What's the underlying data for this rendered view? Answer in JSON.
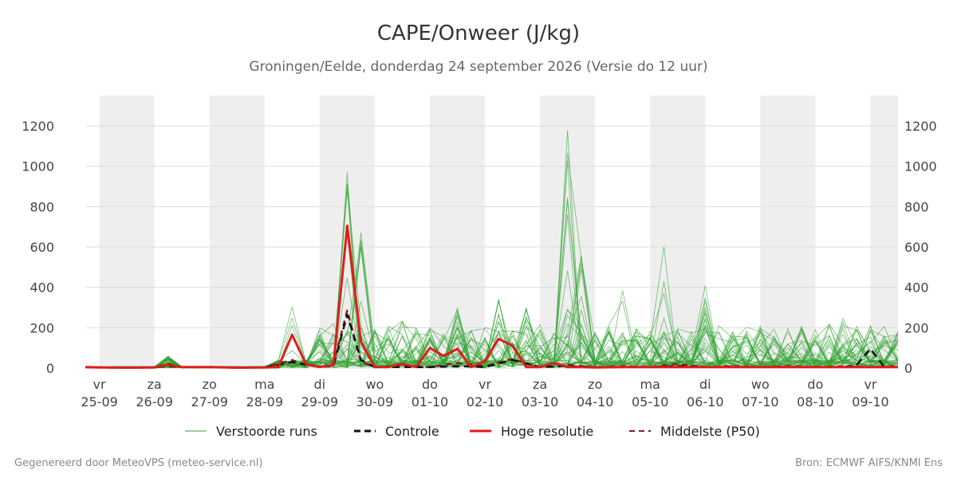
{
  "title": "CAPE/Onweer (J/kg)",
  "subtitle": "Groningen/Eelde, donderdag 24 september 2026 (Versie do 12 uur)",
  "footer": {
    "left": "Gegenereerd door MeteoVPS (meteo-service.nl)",
    "right": "Bron: ECMWF AIFS/KNMI Ens"
  },
  "colors": {
    "ensemble": "#2ca02c",
    "control": "#111111",
    "hires": "#e11b1b",
    "median": "#8b1a1a",
    "weekend_band": "#eeeeee",
    "grid": "#dddddd"
  },
  "chart_data": {
    "type": "line",
    "title": "CAPE/Onweer (J/kg)",
    "xlabel": "",
    "ylabel": "",
    "x_unit": "days from vr 25-09 00:00",
    "xlim": [
      -0.24,
      14.5
    ],
    "ylim": [
      0,
      1350
    ],
    "y_ticks": [
      0,
      200,
      400,
      600,
      800,
      1000,
      1200
    ],
    "grid": true,
    "legend_position": "bottom",
    "day_ticks": [
      {
        "x": 0,
        "day": "vr",
        "date": "25-09"
      },
      {
        "x": 1,
        "day": "za",
        "date": "26-09"
      },
      {
        "x": 2,
        "day": "zo",
        "date": "27-09"
      },
      {
        "x": 3,
        "day": "ma",
        "date": "28-09"
      },
      {
        "x": 4,
        "day": "di",
        "date": "29-09"
      },
      {
        "x": 5,
        "day": "wo",
        "date": "30-09"
      },
      {
        "x": 6,
        "day": "do",
        "date": "01-10"
      },
      {
        "x": 7,
        "day": "vr",
        "date": "02-10"
      },
      {
        "x": 8,
        "day": "za",
        "date": "03-10"
      },
      {
        "x": 9,
        "day": "zo",
        "date": "04-10"
      },
      {
        "x": 10,
        "day": "ma",
        "date": "05-10"
      },
      {
        "x": 11,
        "day": "di",
        "date": "06-10"
      },
      {
        "x": 12,
        "day": "wo",
        "date": "07-10"
      },
      {
        "x": 13,
        "day": "do",
        "date": "08-10"
      },
      {
        "x": 14,
        "day": "vr",
        "date": "09-10"
      }
    ],
    "shaded_bands": [
      [
        0,
        1
      ],
      [
        2,
        3
      ],
      [
        4,
        5
      ],
      [
        6,
        7
      ],
      [
        8,
        9
      ],
      [
        10,
        11
      ],
      [
        12,
        13
      ],
      [
        14,
        14.5
      ]
    ],
    "legend": [
      {
        "key": "ensemble",
        "label": "Verstoorde runs"
      },
      {
        "key": "control",
        "label": "Controle"
      },
      {
        "key": "hires",
        "label": "Hoge resolutie"
      },
      {
        "key": "median",
        "label": "Middelste (P50)"
      }
    ],
    "series": [
      {
        "name": "Hoge resolutie",
        "key": "hires",
        "x": [
          -0.25,
          0,
          0.5,
          1,
          1.25,
          1.5,
          2,
          2.5,
          3,
          3.25,
          3.5,
          3.75,
          4,
          4.25,
          4.5,
          4.75,
          5,
          5.25,
          5.5,
          5.75,
          6,
          6.25,
          6.5,
          6.75,
          7,
          7.25,
          7.5,
          7.75,
          8,
          8.25,
          8.5,
          8.75,
          9,
          9.5,
          10,
          10.5,
          11,
          11.5,
          12,
          12.5,
          13,
          13.5,
          14,
          14.5
        ],
        "values": [
          5,
          3,
          2,
          3,
          15,
          5,
          5,
          2,
          3,
          5,
          165,
          20,
          5,
          15,
          705,
          130,
          5,
          5,
          20,
          5,
          100,
          60,
          95,
          5,
          35,
          145,
          110,
          5,
          5,
          25,
          5,
          5,
          3,
          5,
          5,
          5,
          5,
          5,
          5,
          5,
          5,
          5,
          5,
          5
        ]
      },
      {
        "name": "Controle",
        "key": "control",
        "x": [
          -0.25,
          0,
          0.5,
          1,
          1.25,
          1.5,
          2,
          2.5,
          3,
          3.5,
          4,
          4.25,
          4.5,
          4.75,
          5,
          5.5,
          6,
          6.5,
          7,
          7.5,
          8,
          8.5,
          9,
          9.5,
          10,
          10.5,
          11,
          11.5,
          12,
          12.5,
          13,
          13.5,
          13.75,
          14,
          14.25,
          14.5
        ],
        "values": [
          5,
          3,
          2,
          3,
          10,
          5,
          5,
          2,
          3,
          30,
          5,
          10,
          265,
          40,
          5,
          5,
          5,
          10,
          5,
          40,
          5,
          10,
          5,
          5,
          5,
          10,
          5,
          5,
          5,
          5,
          5,
          5,
          15,
          95,
          5,
          5
        ]
      },
      {
        "name": "Middelste (P50)",
        "key": "median",
        "x": [
          -0.25,
          0,
          0.5,
          1,
          1.25,
          1.5,
          2,
          2.5,
          3,
          3.5,
          3.75,
          4,
          4.25,
          4.5,
          4.75,
          5,
          5.5,
          6,
          6.5,
          7,
          7.5,
          8,
          8.5,
          9,
          9.5,
          10,
          10.5,
          11,
          11.5,
          12,
          12.5,
          13,
          13.5,
          14,
          14.5
        ],
        "values": [
          5,
          3,
          2,
          3,
          20,
          5,
          5,
          2,
          3,
          40,
          15,
          5,
          20,
          285,
          30,
          5,
          10,
          5,
          25,
          10,
          45,
          5,
          15,
          5,
          10,
          5,
          20,
          5,
          10,
          5,
          10,
          5,
          10,
          5,
          10
        ]
      }
    ]
  }
}
